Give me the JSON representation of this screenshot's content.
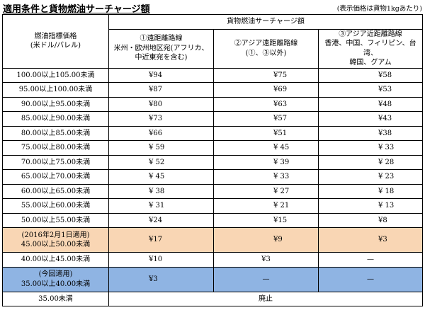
{
  "header": {
    "title": "適用条件と貨物燃油サーチャージ額",
    "note": "(表示価格は貨物1kgあたり)"
  },
  "table": {
    "index_header_line1": "燃油指標価格",
    "index_header_line2": "(米ドル/バレル)",
    "surcharge_header": "貨物燃油サーチャージ額",
    "routes": [
      {
        "line1": "①遠距離路線",
        "line2": "米州・欧州地区宛(アフリカ、",
        "line3": "中近東宛を含む)"
      },
      {
        "line1": "②アジア遠距離路線",
        "line2": "(①、③以外)",
        "line3": ""
      },
      {
        "line1": "③アジア近距離路線",
        "line2": "香港、中国、フィリピン、台湾、",
        "line3": "韓国、グアム"
      }
    ],
    "rows": [
      {
        "range": "100.00以上105.00未満",
        "r1": "¥94",
        "r2": "¥75",
        "r3": "¥58"
      },
      {
        "range": "95.00以上100.00未満",
        "r1": "¥87",
        "r2": "¥69",
        "r3": "¥53"
      },
      {
        "range": "90.00以上95.00未満",
        "r1": "¥80",
        "r2": "¥63",
        "r3": "¥48"
      },
      {
        "range": "85.00以上90.00未満",
        "r1": "¥73",
        "r2": "¥57",
        "r3": "¥43"
      },
      {
        "range": "80.00以上85.00未満",
        "r1": "¥66",
        "r2": "¥51",
        "r3": "¥38"
      },
      {
        "range": "75.00以上80.00未満",
        "r1": "¥ 59",
        "r2": "¥ 45",
        "r3": "¥ 33"
      },
      {
        "range": "70.00以上75.00未満",
        "r1": "¥ 52",
        "r2": "¥ 39",
        "r3": "¥ 28"
      },
      {
        "range": "65.00以上70.00未満",
        "r1": "¥ 45",
        "r2": "¥ 33",
        "r3": "¥ 23"
      },
      {
        "range": "60.00以上65.00未満",
        "r1": "¥ 38",
        "r2": "¥ 27",
        "r3": "¥ 18"
      },
      {
        "range": "55.00以上60.00未満",
        "r1": "¥ 31",
        "r2": "¥ 21",
        "r3": "¥ 13"
      },
      {
        "range": "50.00以上55.00未満",
        "r1": "¥24",
        "r2": "¥15",
        "r3": "¥8"
      }
    ],
    "current_row": {
      "label": "(2016年2月1日適用)",
      "range": "45.00以上50.00未満",
      "r1": "¥17",
      "r2": "¥9",
      "r3": "¥3"
    },
    "row_40": {
      "range": "40.00以上45.00未満",
      "r1": "¥10",
      "r2": "¥3",
      "r3": "—"
    },
    "next_row": {
      "label": "(今回適用)",
      "range": "35.00以上40.00未満",
      "r1": "¥3",
      "r2": "—",
      "r3": "—"
    },
    "last_row": {
      "range": "35.00未満",
      "value": "廃止"
    },
    "colors": {
      "orange_highlight": "#f9d6b4",
      "blue_highlight": "#8fb4e3"
    }
  }
}
